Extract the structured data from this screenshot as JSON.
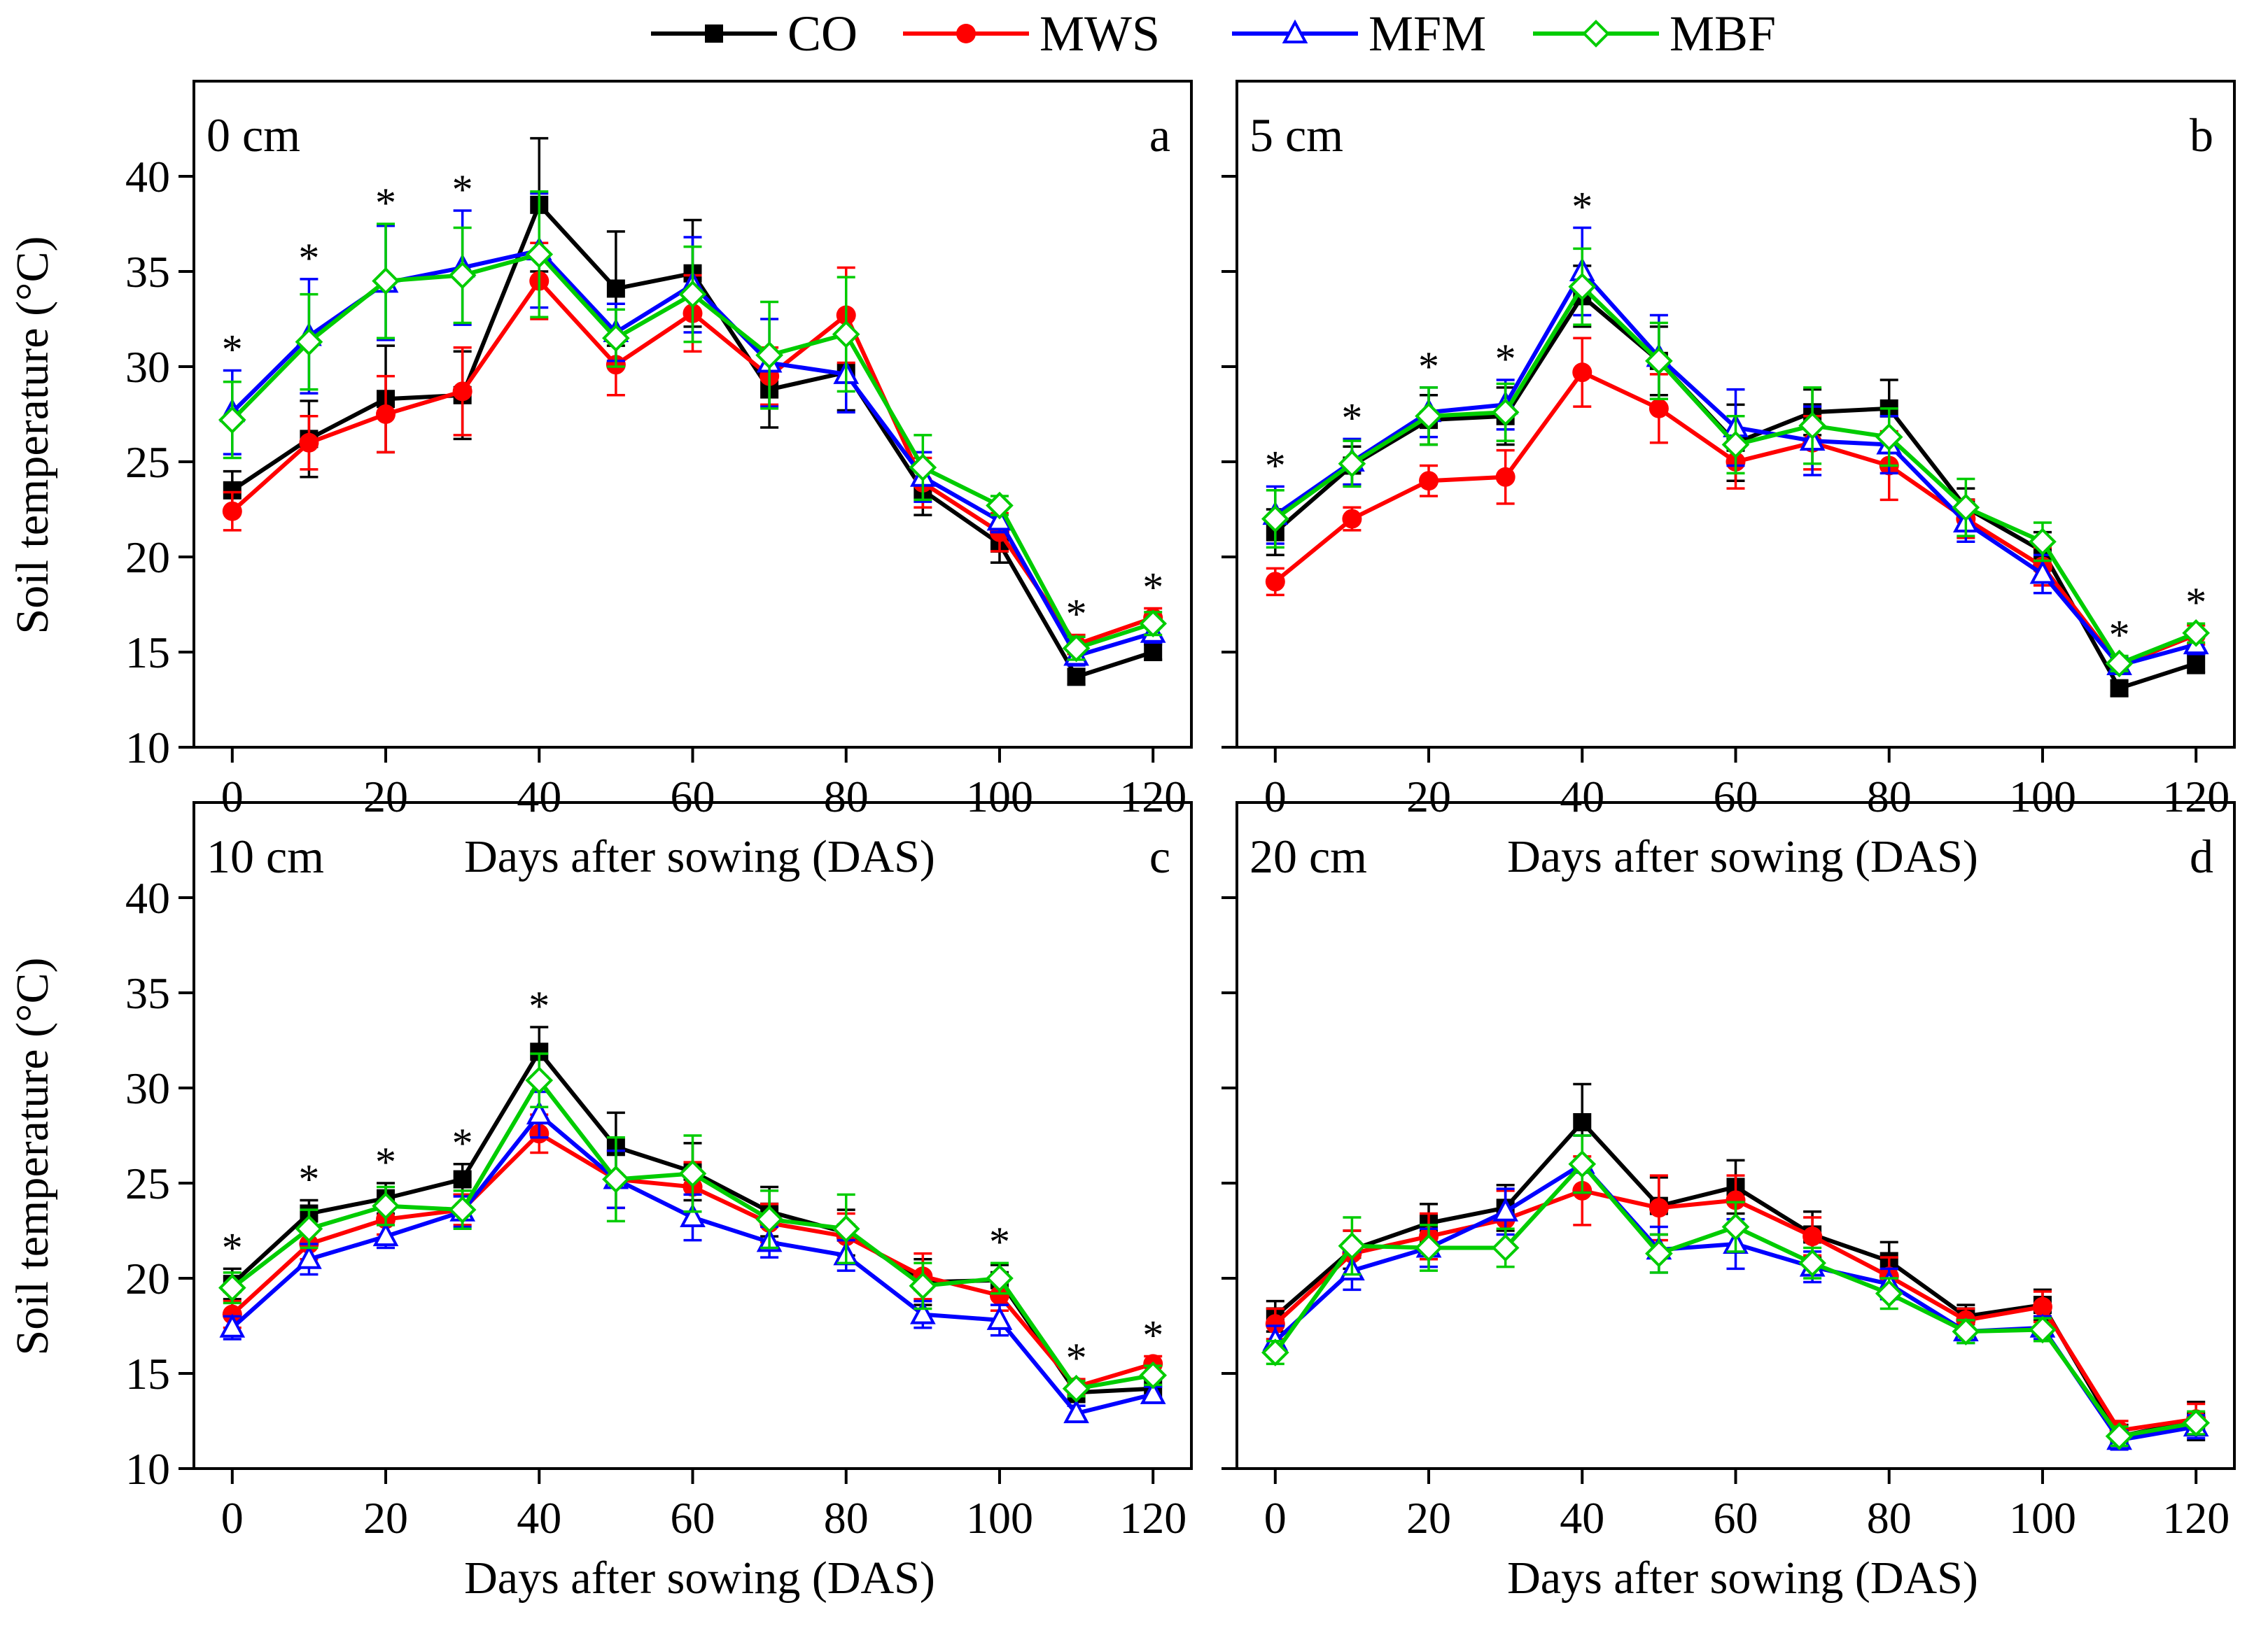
{
  "legend": [
    {
      "name": "CO",
      "color": "#000000",
      "marker": "square-filled"
    },
    {
      "name": "MWS",
      "color": "#ff0000",
      "marker": "circle-filled"
    },
    {
      "name": "MFM",
      "color": "#0000ff",
      "marker": "triangle-open"
    },
    {
      "name": "MBF",
      "color": "#00cc00",
      "marker": "diamond-open"
    }
  ],
  "chart_data": [
    {
      "type": "line",
      "panel_letter": "a",
      "depth_label": "0 cm",
      "xlabel": "Days after sowing (DAS)",
      "ylabel": "Soil temperature (°C)",
      "xlim": [
        -5,
        125
      ],
      "ylim": [
        10,
        45
      ],
      "xticks": [
        0,
        20,
        40,
        60,
        80,
        100,
        120
      ],
      "yticks": [
        10,
        15,
        20,
        25,
        30,
        35,
        40
      ],
      "x": [
        0,
        10,
        20,
        30,
        40,
        50,
        60,
        70,
        80,
        90,
        100,
        110,
        120
      ],
      "significance_x": [
        0,
        10,
        20,
        30,
        110,
        120
      ],
      "series": [
        {
          "name": "CO",
          "values": [
            23.5,
            26.2,
            28.3,
            28.5,
            38.5,
            34.1,
            34.9,
            28.8,
            29.7,
            23.5,
            20.7,
            13.7,
            15.0
          ],
          "errors": [
            1.0,
            2.0,
            2.8,
            2.3,
            3.5,
            3.0,
            2.8,
            2.0,
            2.0,
            1.3,
            1.0,
            0.4,
            0.4
          ]
        },
        {
          "name": "MWS",
          "values": [
            22.4,
            26.0,
            27.5,
            28.7,
            34.5,
            30.1,
            32.8,
            29.5,
            32.7,
            23.9,
            21.3,
            15.4,
            16.8
          ],
          "errors": [
            1.0,
            1.4,
            2.0,
            2.3,
            2.0,
            1.6,
            2.0,
            1.5,
            2.5,
            1.3,
            1.0,
            0.5,
            0.5
          ]
        },
        {
          "name": "MFM",
          "values": [
            27.6,
            31.6,
            34.4,
            35.2,
            36.1,
            31.8,
            34.3,
            30.2,
            29.6,
            24.2,
            21.9,
            14.8,
            16.0
          ],
          "errors": [
            2.2,
            3.0,
            3.0,
            3.0,
            3.0,
            1.5,
            2.5,
            2.3,
            2.0,
            1.3,
            0.6,
            0.5,
            0.5
          ]
        },
        {
          "name": "MBF",
          "values": [
            27.2,
            31.3,
            34.5,
            34.8,
            35.9,
            31.5,
            33.8,
            30.6,
            31.7,
            24.7,
            22.7,
            15.2,
            16.5
          ],
          "errors": [
            2.0,
            2.5,
            3.0,
            2.5,
            3.3,
            1.5,
            2.5,
            2.8,
            3.0,
            1.7,
            0.5,
            0.6,
            0.6
          ]
        }
      ]
    },
    {
      "type": "line",
      "panel_letter": "b",
      "depth_label": "5 cm",
      "xlabel": "Days after sowing (DAS)",
      "ylabel": "Soil temperature (°C)",
      "xlim": [
        -5,
        125
      ],
      "ylim": [
        10,
        45
      ],
      "xticks": [
        0,
        20,
        40,
        60,
        80,
        100,
        120
      ],
      "yticks": [
        10,
        15,
        20,
        25,
        30,
        35,
        40
      ],
      "x": [
        0,
        10,
        20,
        30,
        40,
        50,
        60,
        70,
        80,
        90,
        100,
        110,
        120
      ],
      "significance_x": [
        0,
        10,
        20,
        30,
        40,
        110,
        120
      ],
      "series": [
        {
          "name": "CO",
          "values": [
            21.3,
            24.8,
            27.2,
            27.4,
            33.7,
            30.3,
            26.0,
            27.6,
            27.8,
            22.6,
            20.3,
            13.1,
            14.4
          ],
          "errors": [
            1.2,
            1.0,
            1.3,
            1.5,
            1.6,
            1.8,
            2.0,
            1.2,
            1.5,
            1.0,
            1.0,
            0.4,
            0.5
          ]
        },
        {
          "name": "MWS",
          "values": [
            18.7,
            22.0,
            24.0,
            24.2,
            29.7,
            27.8,
            25.0,
            26.0,
            24.8,
            22.0,
            19.5,
            14.3,
            15.9
          ],
          "errors": [
            0.7,
            0.6,
            0.8,
            1.4,
            1.8,
            1.8,
            1.4,
            1.4,
            1.8,
            1.0,
            1.0,
            0.4,
            0.5
          ]
        },
        {
          "name": "MFM",
          "values": [
            22.2,
            25.0,
            27.6,
            28.0,
            35.0,
            30.5,
            26.8,
            26.1,
            25.9,
            21.8,
            19.1,
            14.3,
            15.4
          ],
          "errors": [
            1.5,
            1.2,
            1.3,
            1.3,
            2.3,
            2.2,
            2.0,
            1.8,
            1.5,
            1.0,
            1.0,
            0.4,
            0.5
          ]
        },
        {
          "name": "MBF",
          "values": [
            22.0,
            24.9,
            27.4,
            27.6,
            34.2,
            30.3,
            25.9,
            26.9,
            26.3,
            22.6,
            20.8,
            14.4,
            16.0
          ],
          "errors": [
            1.5,
            1.2,
            1.5,
            1.5,
            2.0,
            2.0,
            1.5,
            2.0,
            1.5,
            1.5,
            1.0,
            0.4,
            0.5
          ]
        }
      ]
    },
    {
      "type": "line",
      "panel_letter": "c",
      "depth_label": "10 cm",
      "xlabel": "Days after sowing (DAS)",
      "ylabel": "Soil temperature (°C)",
      "xlim": [
        -5,
        125
      ],
      "ylim": [
        10,
        45
      ],
      "xticks": [
        0,
        20,
        40,
        60,
        80,
        100,
        120
      ],
      "yticks": [
        10,
        15,
        20,
        25,
        30,
        35,
        40
      ],
      "x": [
        0,
        10,
        20,
        30,
        40,
        50,
        60,
        70,
        80,
        90,
        100,
        110,
        120
      ],
      "significance_x": [
        0,
        10,
        20,
        30,
        40,
        100,
        110,
        120
      ],
      "series": [
        {
          "name": "CO",
          "values": [
            19.7,
            23.4,
            24.2,
            25.2,
            31.9,
            26.9,
            25.6,
            23.5,
            22.4,
            19.8,
            19.9,
            14.0,
            14.2
          ],
          "errors": [
            0.8,
            0.7,
            0.8,
            0.8,
            1.3,
            1.8,
            1.5,
            1.3,
            1.2,
            1.2,
            0.8,
            0.5,
            0.5
          ]
        },
        {
          "name": "MWS",
          "values": [
            18.1,
            21.8,
            23.1,
            23.6,
            27.6,
            25.2,
            24.8,
            22.9,
            22.2,
            20.1,
            19.1,
            14.3,
            15.5
          ],
          "errors": [
            0.7,
            0.8,
            0.8,
            0.8,
            1.0,
            1.5,
            1.3,
            1.0,
            1.2,
            1.2,
            0.8,
            0.4,
            0.4
          ]
        },
        {
          "name": "MFM",
          "values": [
            17.4,
            21.0,
            22.2,
            23.5,
            28.6,
            25.2,
            23.2,
            21.9,
            21.2,
            18.1,
            17.8,
            12.9,
            13.9
          ],
          "errors": [
            0.6,
            0.8,
            0.6,
            0.8,
            1.2,
            1.5,
            1.2,
            0.8,
            0.8,
            0.7,
            0.8,
            0.4,
            0.4
          ]
        },
        {
          "name": "MBF",
          "values": [
            19.5,
            22.6,
            23.8,
            23.6,
            30.4,
            25.2,
            25.5,
            23.1,
            22.6,
            19.6,
            20.0,
            14.2,
            14.9
          ],
          "errors": [
            0.8,
            1.0,
            1.0,
            1.0,
            1.4,
            2.2,
            2.0,
            1.5,
            1.8,
            1.2,
            0.8,
            0.4,
            0.5
          ]
        }
      ]
    },
    {
      "type": "line",
      "panel_letter": "d",
      "depth_label": "20 cm",
      "xlabel": "Days after sowing (DAS)",
      "ylabel": "Soil temperature (°C)",
      "xlim": [
        -5,
        125
      ],
      "ylim": [
        10,
        45
      ],
      "xticks": [
        0,
        20,
        40,
        60,
        80,
        100,
        120
      ],
      "yticks": [
        10,
        15,
        20,
        25,
        30,
        35,
        40
      ],
      "x": [
        0,
        10,
        20,
        30,
        40,
        50,
        60,
        70,
        80,
        90,
        100,
        110,
        120
      ],
      "significance_x": [],
      "series": [
        {
          "name": "CO",
          "values": [
            18.0,
            21.5,
            22.9,
            23.7,
            28.2,
            23.8,
            24.8,
            22.3,
            20.9,
            18.0,
            18.6,
            11.7,
            12.5
          ],
          "errors": [
            0.8,
            1.0,
            1.0,
            1.2,
            2.0,
            1.5,
            1.4,
            1.2,
            1.0,
            0.6,
            0.8,
            0.6,
            1.0
          ]
        },
        {
          "name": "MWS",
          "values": [
            17.6,
            21.3,
            22.2,
            23.1,
            24.6,
            23.7,
            24.1,
            22.2,
            20.1,
            17.8,
            18.5,
            12.0,
            12.6
          ],
          "errors": [
            0.8,
            1.2,
            1.2,
            1.5,
            1.8,
            1.7,
            1.3,
            1.0,
            1.0,
            0.6,
            0.8,
            0.5,
            0.8
          ]
        },
        {
          "name": "MFM",
          "values": [
            16.7,
            20.4,
            21.6,
            23.5,
            26.0,
            21.5,
            21.8,
            20.6,
            19.7,
            17.2,
            17.4,
            11.5,
            12.2
          ],
          "errors": [
            0.8,
            1.0,
            1.0,
            1.2,
            1.5,
            1.2,
            1.3,
            0.8,
            0.8,
            0.6,
            0.6,
            0.5,
            0.6
          ]
        },
        {
          "name": "MBF",
          "values": [
            16.1,
            21.7,
            21.6,
            21.6,
            26.0,
            21.3,
            22.7,
            20.8,
            19.2,
            17.2,
            17.3,
            11.7,
            12.4
          ],
          "errors": [
            0.6,
            1.5,
            1.2,
            1.0,
            1.5,
            1.0,
            1.3,
            0.8,
            0.8,
            0.6,
            0.6,
            0.5,
            0.6
          ]
        }
      ]
    }
  ]
}
